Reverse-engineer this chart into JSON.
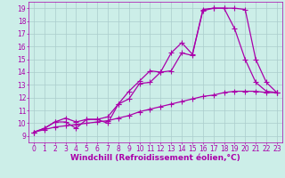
{
  "background_color": "#cceee8",
  "grid_color": "#aacccc",
  "line_color": "#aa00aa",
  "marker": "+",
  "markersize": 4,
  "linewidth": 0.9,
  "xlabel": "Windchill (Refroidissement éolien,°C)",
  "xlabel_fontsize": 6.5,
  "xlim": [
    -0.5,
    23.5
  ],
  "ylim": [
    8.5,
    19.5
  ],
  "xticks": [
    0,
    1,
    2,
    3,
    4,
    5,
    6,
    7,
    8,
    9,
    10,
    11,
    12,
    13,
    14,
    15,
    16,
    17,
    18,
    19,
    20,
    21,
    22,
    23
  ],
  "yticks": [
    9,
    10,
    11,
    12,
    13,
    14,
    15,
    16,
    17,
    18,
    19
  ],
  "series1_x": [
    0,
    1,
    2,
    3,
    4,
    5,
    6,
    7,
    8,
    9,
    10,
    11,
    12,
    13,
    14,
    15,
    16,
    17,
    18,
    19,
    20,
    21,
    22,
    23
  ],
  "series1_y": [
    9.3,
    9.6,
    10.1,
    10.1,
    9.6,
    10.3,
    10.3,
    10.0,
    11.5,
    11.9,
    13.1,
    13.2,
    14.0,
    14.1,
    15.5,
    15.3,
    18.9,
    19.0,
    19.0,
    17.4,
    15.0,
    13.2,
    12.5,
    12.4
  ],
  "series2_x": [
    0,
    1,
    2,
    3,
    4,
    5,
    6,
    7,
    8,
    9,
    10,
    11,
    12,
    13,
    14,
    15,
    16,
    17,
    18,
    19,
    20,
    21,
    22,
    23
  ],
  "series2_y": [
    9.3,
    9.6,
    10.1,
    10.4,
    10.1,
    10.3,
    10.3,
    10.5,
    11.5,
    12.5,
    13.3,
    14.1,
    14.0,
    15.5,
    16.3,
    15.4,
    18.8,
    19.0,
    19.0,
    19.0,
    18.9,
    15.0,
    13.2,
    12.4
  ],
  "series3_x": [
    0,
    1,
    2,
    3,
    4,
    5,
    6,
    7,
    8,
    9,
    10,
    11,
    12,
    13,
    14,
    15,
    16,
    17,
    18,
    19,
    20,
    21,
    22,
    23
  ],
  "series3_y": [
    9.3,
    9.5,
    9.7,
    9.8,
    9.9,
    10.0,
    10.1,
    10.2,
    10.4,
    10.6,
    10.9,
    11.1,
    11.3,
    11.5,
    11.7,
    11.9,
    12.1,
    12.2,
    12.4,
    12.5,
    12.5,
    12.5,
    12.4,
    12.4
  ],
  "tick_fontsize": 5.5,
  "figsize": [
    3.2,
    2.0
  ],
  "dpi": 100
}
